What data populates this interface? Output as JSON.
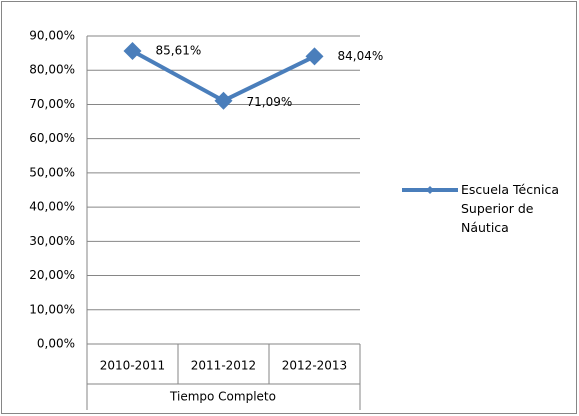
{
  "chart_data": {
    "type": "line",
    "categories": [
      "2010-2011",
      "2011-2012",
      "2012-2013"
    ],
    "x_group_label": "Tiempo Completo",
    "series": [
      {
        "name": "Escuela Técnica Superior de Náutica",
        "color": "#4a7ebb",
        "values": [
          85.61,
          71.09,
          84.04
        ],
        "value_labels": [
          "85,61%",
          "71,09%",
          "84,04%"
        ]
      }
    ],
    "ylim": [
      0,
      90
    ],
    "yticks": [
      {
        "value": 0,
        "label": "0,00%"
      },
      {
        "value": 10,
        "label": "10,00%"
      },
      {
        "value": 20,
        "label": "20,00%"
      },
      {
        "value": 30,
        "label": "30,00%"
      },
      {
        "value": 40,
        "label": "40,00%"
      },
      {
        "value": 50,
        "label": "50,00%"
      },
      {
        "value": 60,
        "label": "60,00%"
      },
      {
        "value": 70,
        "label": "70,00%"
      },
      {
        "value": 80,
        "label": "80,00%"
      },
      {
        "value": 90,
        "label": "90,00%"
      }
    ],
    "grid": true,
    "legend": "right"
  }
}
